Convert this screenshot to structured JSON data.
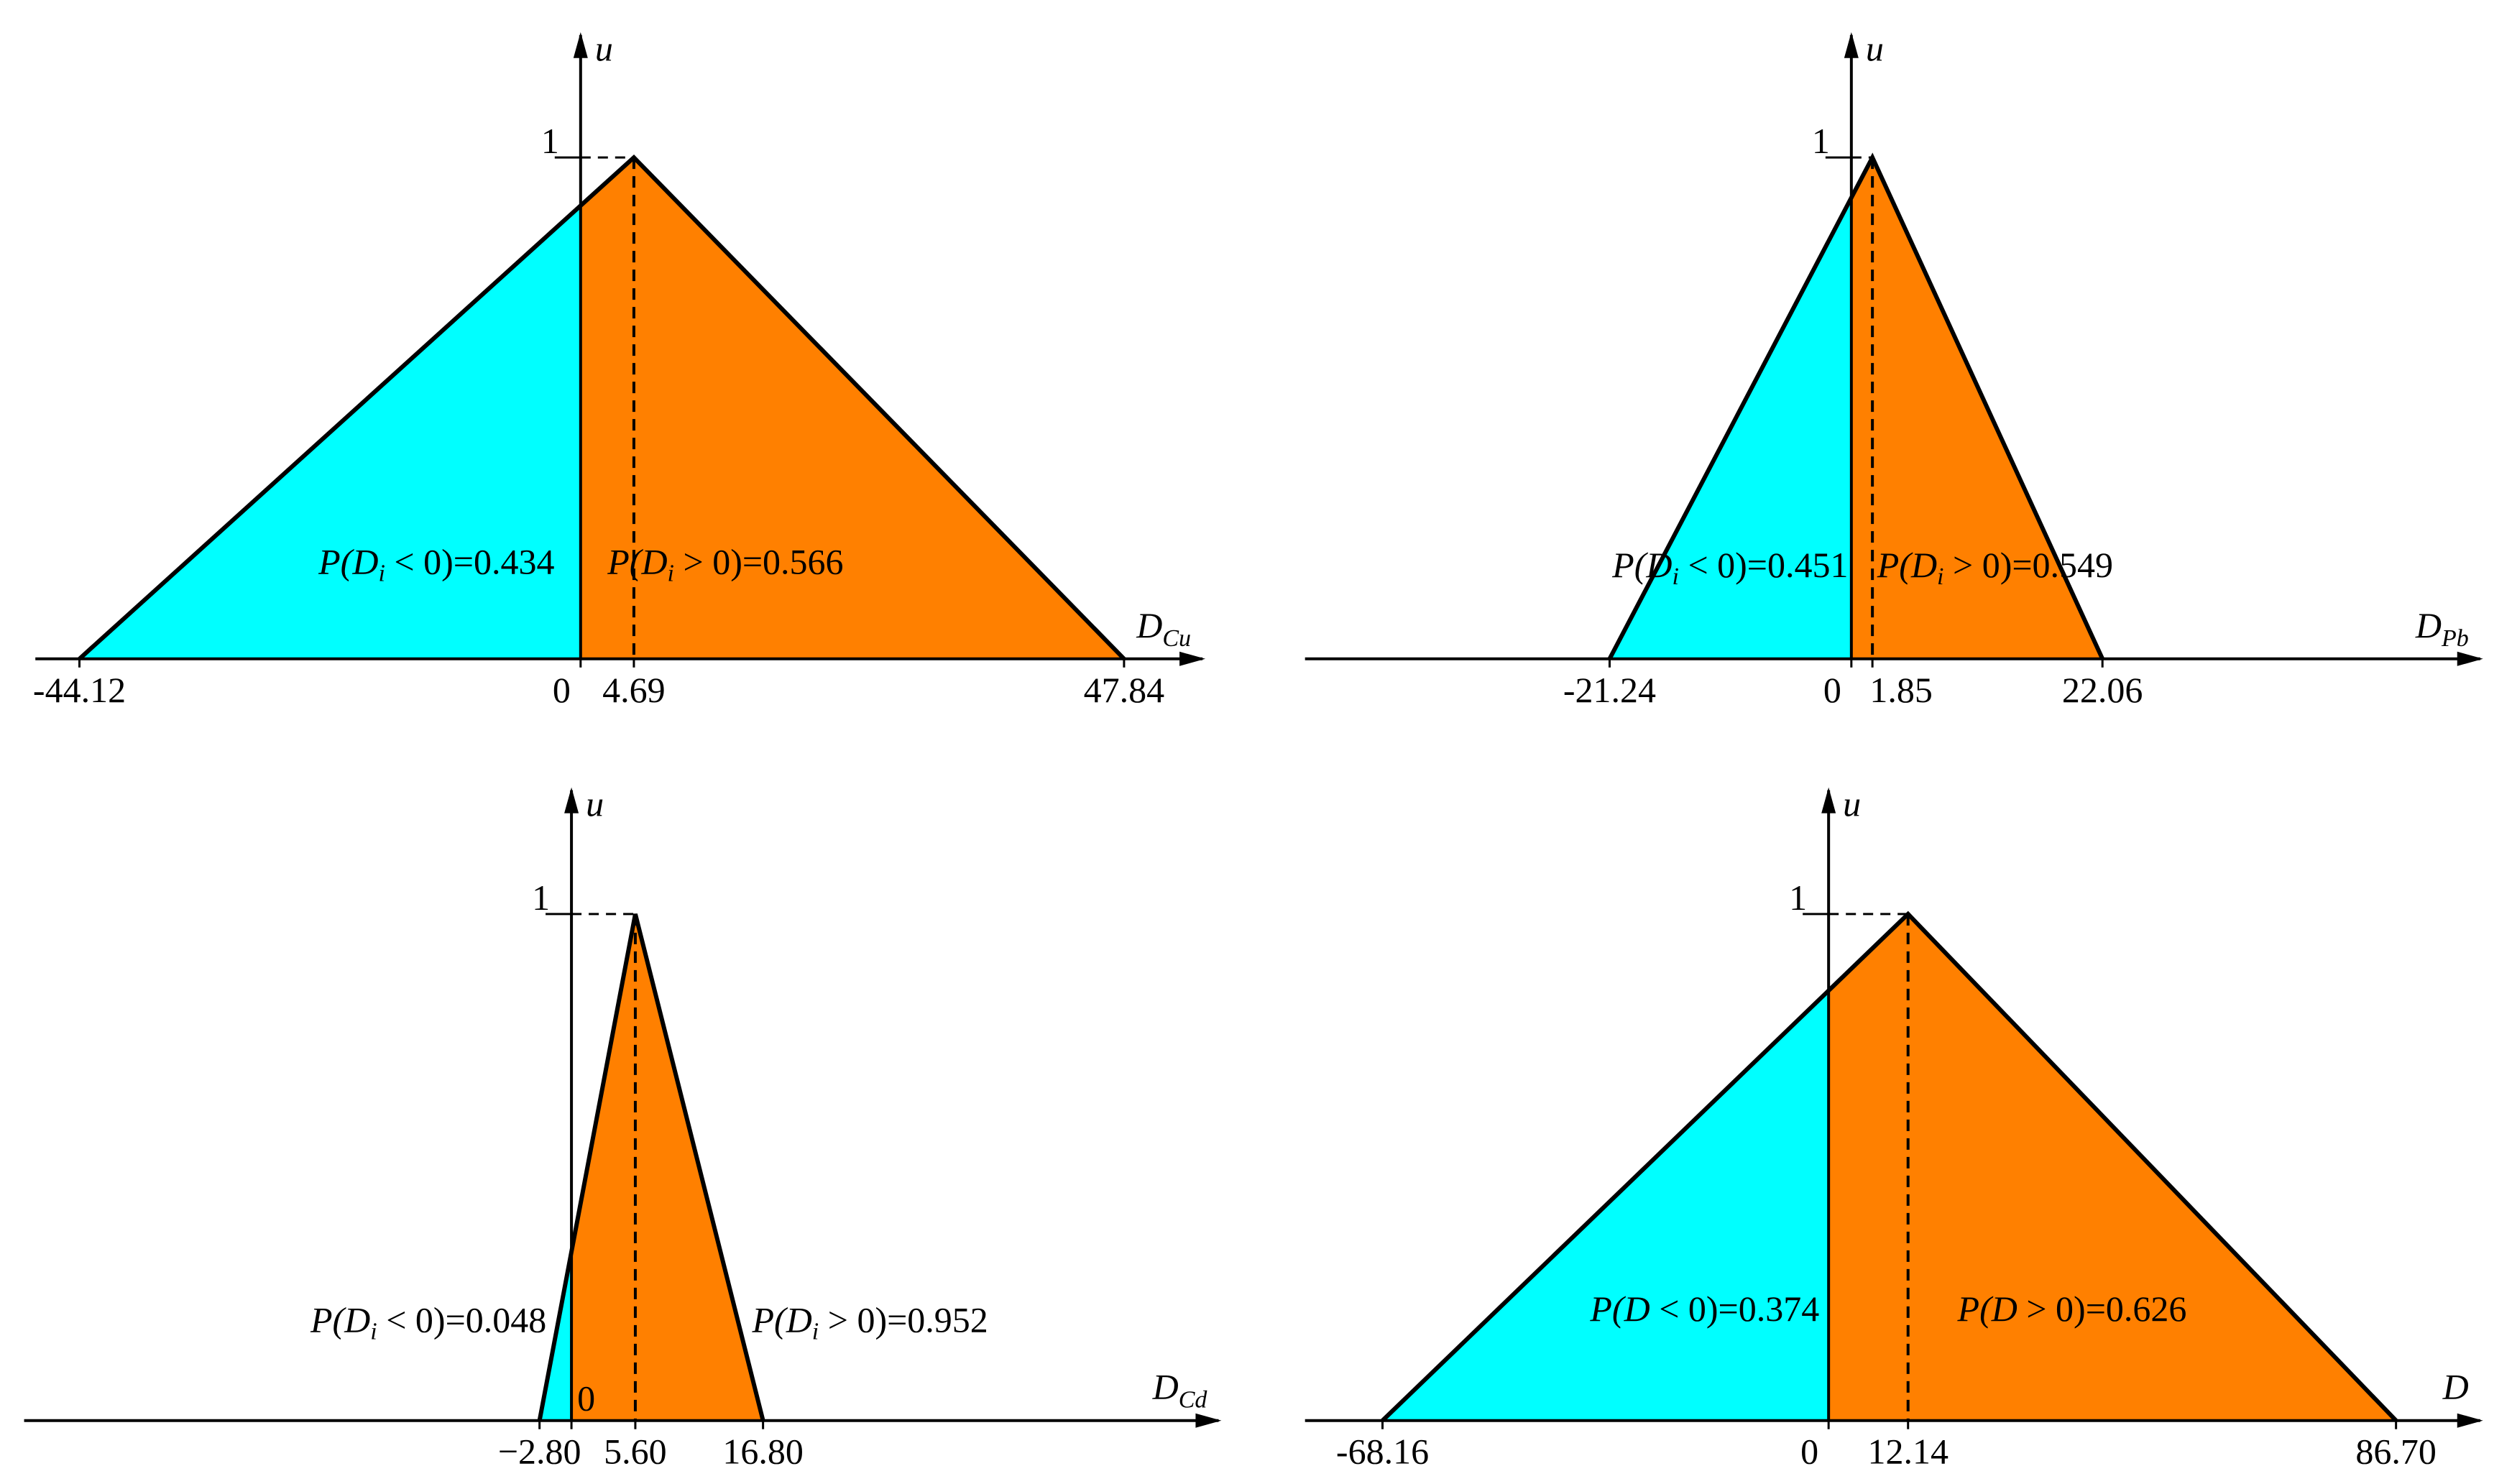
{
  "chart_data": [
    {
      "type": "triangle",
      "y_label": "u",
      "x_label": "D",
      "x_label_sub": "Cu",
      "triangle": [
        -44.12,
        4.69,
        47.84
      ],
      "u": [
        0,
        1,
        0
      ],
      "xlim": [
        -48,
        55
      ],
      "ylim": [
        0,
        1.25
      ],
      "xticks": [
        -44.12,
        0,
        4.69,
        47.84
      ],
      "yticks": [
        1
      ],
      "colors": {
        "negative": "#00ffff",
        "positive": "#ff8000"
      },
      "neg_label": {
        "prefix": "P(",
        "var": "D",
        "sub": "i",
        "rel": " < 0)=",
        "value": 0.434
      },
      "pos_label": {
        "prefix": "P(",
        "var": "D",
        "sub": "i",
        "rel": " > 0)=",
        "value": 0.566
      }
    },
    {
      "type": "triangle",
      "y_label": "u",
      "x_label": "D",
      "x_label_sub": "Pb",
      "triangle": [
        -21.24,
        1.85,
        22.06
      ],
      "u": [
        0,
        1,
        0
      ],
      "xlim": [
        -48,
        55.5
      ],
      "ylim": [
        0,
        1.25
      ],
      "xticks": [
        -21.24,
        0,
        1.85,
        22.06
      ],
      "yticks": [
        1
      ],
      "colors": {
        "negative": "#00ffff",
        "positive": "#ff8000"
      },
      "neg_label": {
        "prefix": "P(",
        "var": "D",
        "sub": "i",
        "rel": " < 0)=",
        "value": 0.451
      },
      "pos_label": {
        "prefix": "P(",
        "var": "D",
        "sub": "i",
        "rel": " > 0)=",
        "value": 0.549
      }
    },
    {
      "type": "triangle",
      "y_label": "u",
      "x_label": "D",
      "x_label_sub": "Cd",
      "triangle": [
        -2.8,
        5.6,
        16.8
      ],
      "u": [
        0,
        1,
        0
      ],
      "xlim": [
        -48,
        57
      ],
      "ylim": [
        0,
        1.25
      ],
      "xticks": [
        {
          "value": -2.8,
          "label": "−2.80"
        },
        0,
        {
          "value": 5.6,
          "label": "5.60"
        },
        {
          "value": 16.8,
          "label": "16.80"
        }
      ],
      "yticks": [
        1
      ],
      "colors": {
        "negative": "#00ffff",
        "positive": "#ff8000"
      },
      "neg_label": {
        "prefix": "P(",
        "var": "D",
        "sub": "i",
        "rel": " < 0)=",
        "value": 0.048
      },
      "pos_label": {
        "prefix": "P(",
        "var": "D",
        "sub": "i",
        "rel": " > 0)=",
        "value": 0.952
      }
    },
    {
      "type": "triangle",
      "y_label": "u",
      "x_label": "D",
      "triangle": [
        -68.16,
        12.14,
        86.7
      ],
      "u": [
        0,
        1,
        0
      ],
      "xlim": [
        -80,
        100
      ],
      "ylim": [
        0,
        1.25
      ],
      "xticks": [
        -68.16,
        0,
        12.14,
        {
          "value": 86.7,
          "label": "86.70"
        }
      ],
      "yticks": [
        1
      ],
      "colors": {
        "negative": "#00ffff",
        "positive": "#ff8000"
      },
      "neg_label": {
        "prefix": "P(",
        "var": "D",
        "rel": " < 0)=",
        "value": 0.374
      },
      "pos_label": {
        "prefix": "P(",
        "var": "D",
        "rel": " > 0)=",
        "value": 0.626
      }
    }
  ]
}
